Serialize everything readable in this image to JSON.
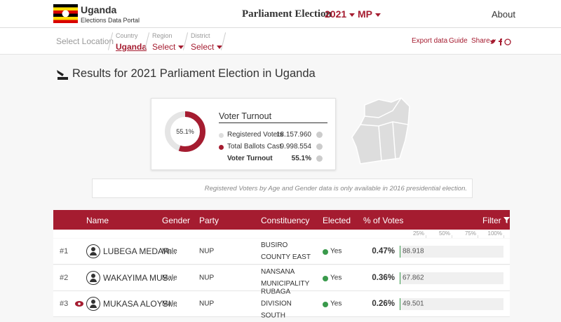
{
  "header": {
    "title": "Uganda",
    "subtitle": "Elections Data Portal",
    "election": "Parliament Election",
    "year": "2021",
    "level": "MP",
    "about": "About"
  },
  "nav": {
    "select_location": "Select Location",
    "country_label": "Country",
    "country": "Uganda",
    "region_label": "Region",
    "region": "Select",
    "district_label": "District",
    "district": "Select",
    "export": "Export data",
    "guide": "Guide",
    "share": "Share"
  },
  "results_title": "Results for 2021 Parliament Election in Uganda",
  "turnout": {
    "title": "Voter Turnout",
    "percent": {
      "value": 55.1,
      "label": "55.1%"
    },
    "rows": [
      {
        "label": "Registered Voters",
        "value": "18.157.960"
      },
      {
        "label": "Total Ballots Cast",
        "value": "9.998.554"
      },
      {
        "label": "Voter Turnout",
        "value": "55.1%"
      }
    ]
  },
  "note": "Registered Voters by Age and Gender data is only available in 2016 presidential election.",
  "table": {
    "columns": [
      "Name",
      "Gender",
      "Party",
      "Constituency",
      "Elected",
      "% of Votes"
    ],
    "filter": "Filter",
    "scale": [
      {
        "value": 25,
        "label": "25%"
      },
      {
        "value": 50,
        "label": "50%"
      },
      {
        "value": 75,
        "label": "75%"
      },
      {
        "value": 100,
        "label": "100%"
      }
    ],
    "rows": [
      {
        "rank": "#1",
        "name": "LUBEGA MEDAR...",
        "gender": "Male",
        "party": "NUP",
        "constituency": "BUSIRO COUNTY EAST",
        "elected": "Yes",
        "percent": {
          "value": 0.47,
          "label": "0.47%"
        },
        "votes": "88.918"
      },
      {
        "rank": "#2",
        "name": "WAKAYIMA MUS...",
        "gender": "Male",
        "party": "NUP",
        "constituency": "NANSANA MUNICIPALITY",
        "elected": "Yes",
        "percent": {
          "value": 0.36,
          "label": "0.36%"
        },
        "votes": "67.862"
      },
      {
        "rank": "#3",
        "name": "MUKASA ALOYSI...",
        "gender": "Male",
        "party": "NUP",
        "constituency": "RUBAGA DIVISION SOUTH",
        "elected": "Yes",
        "percent": {
          "value": 0.26,
          "label": "0.26%"
        },
        "votes": "49.501"
      }
    ]
  }
}
